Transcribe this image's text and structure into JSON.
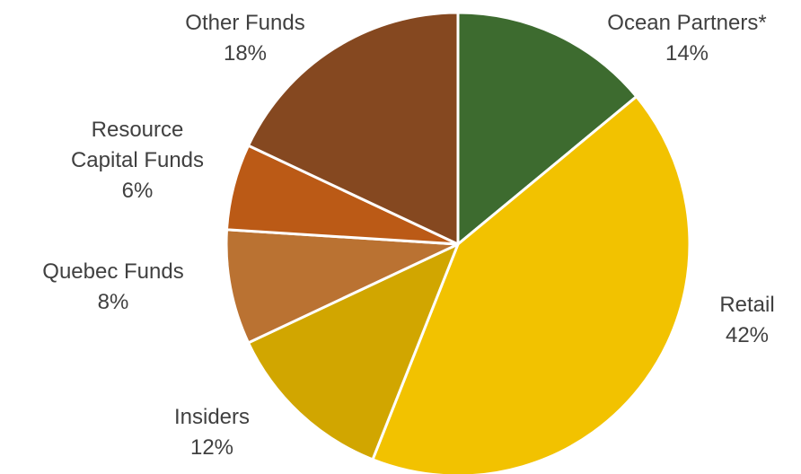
{
  "chart_data": {
    "type": "pie",
    "start_position": "12 o'clock",
    "direction": "clockwise",
    "legend": "none",
    "slices": [
      {
        "label_lines": [
          "Ocean Partners*"
        ],
        "value_label": "14%",
        "value": 14,
        "color": "#3D6B2F"
      },
      {
        "label_lines": [
          "Retail"
        ],
        "value_label": "42%",
        "value": 42,
        "color": "#F2C200"
      },
      {
        "label_lines": [
          "Insiders"
        ],
        "value_label": "12%",
        "value": 12,
        "color": "#D1A600"
      },
      {
        "label_lines": [
          "Quebec Funds"
        ],
        "value_label": "8%",
        "value": 8,
        "color": "#BA7232"
      },
      {
        "label_lines": [
          "Resource",
          "Capital Funds"
        ],
        "value_label": "6%",
        "value": 6,
        "color": "#BB5A16"
      },
      {
        "label_lines": [
          "Other Funds"
        ],
        "value_label": "18%",
        "value": 18,
        "color": "#854820"
      }
    ]
  }
}
